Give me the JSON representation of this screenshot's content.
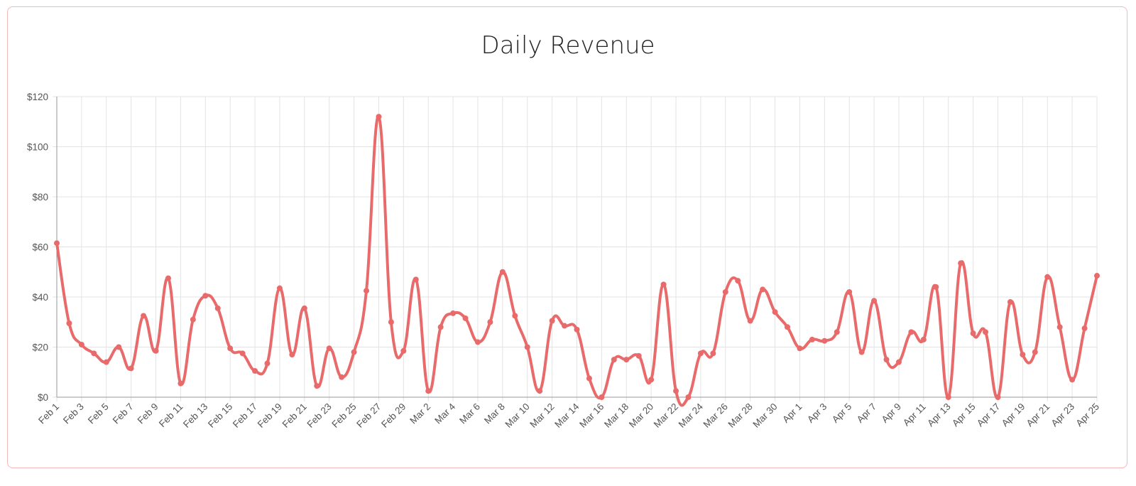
{
  "chart_data": {
    "type": "line",
    "title": "Daily Revenue",
    "xlabel": "",
    "ylabel": "",
    "ylim": [
      0,
      120
    ],
    "yticks": [
      "$0",
      "$20",
      "$40",
      "$60",
      "$80",
      "$100",
      "$120"
    ],
    "ytick_values": [
      0,
      20,
      40,
      60,
      80,
      100,
      120
    ],
    "grid": true,
    "line_color": "#e96a6a",
    "smooth": true,
    "x": [
      "Feb 1",
      "Feb 2",
      "Feb 3",
      "Feb 4",
      "Feb 5",
      "Feb 6",
      "Feb 7",
      "Feb 8",
      "Feb 9",
      "Feb 10",
      "Feb 11",
      "Feb 12",
      "Feb 13",
      "Feb 14",
      "Feb 15",
      "Feb 16",
      "Feb 17",
      "Feb 18",
      "Feb 19",
      "Feb 20",
      "Feb 21",
      "Feb 22",
      "Feb 23",
      "Feb 24",
      "Feb 25",
      "Feb 26",
      "Feb 27",
      "Feb 28",
      "Feb 29",
      "Mar 1",
      "Mar 2",
      "Mar 3",
      "Mar 4",
      "Mar 5",
      "Mar 6",
      "Mar 7",
      "Mar 8",
      "Mar 9",
      "Mar 10",
      "Mar 11",
      "Mar 12",
      "Mar 13",
      "Mar 14",
      "Mar 15",
      "Mar 16",
      "Mar 17",
      "Mar 18",
      "Mar 19",
      "Mar 20",
      "Mar 21",
      "Mar 22",
      "Mar 23",
      "Mar 24",
      "Mar 25",
      "Mar 26",
      "Mar 27",
      "Mar 28",
      "Mar 29",
      "Mar 30",
      "Mar 31",
      "Apr 1",
      "Apr 2",
      "Apr 3",
      "Apr 4",
      "Apr 5",
      "Apr 6",
      "Apr 7",
      "Apr 8",
      "Apr 9",
      "Apr 10",
      "Apr 11",
      "Apr 12",
      "Apr 13",
      "Apr 14",
      "Apr 15",
      "Apr 16",
      "Apr 17",
      "Apr 18",
      "Apr 19",
      "Apr 20",
      "Apr 21",
      "Apr 22",
      "Apr 23",
      "Apr 24",
      "Apr 25"
    ],
    "values": [
      61.5,
      29.5,
      21,
      17.5,
      14,
      20,
      11.5,
      32.5,
      18.5,
      47.5,
      5.5,
      31,
      40.5,
      35.5,
      19.5,
      17.5,
      10.5,
      13.5,
      43.5,
      17,
      35.5,
      4.5,
      19.5,
      8,
      18,
      42.5,
      112,
      30,
      18.5,
      47,
      2.5,
      28,
      33.5,
      31.5,
      22,
      30,
      50,
      32.5,
      20,
      2.5,
      30.5,
      28.5,
      27,
      7.5,
      0,
      15,
      15,
      16.5,
      7,
      45,
      2.5,
      0,
      17.5,
      17.5,
      42,
      46.5,
      30.5,
      43,
      34,
      28,
      19.5,
      23,
      22.5,
      26,
      42,
      18,
      38.5,
      15,
      14,
      26,
      23,
      44,
      0,
      53.5,
      25.5,
      26,
      0,
      38,
      17,
      18,
      48,
      28,
      7,
      27.5,
      48.5
    ],
    "xtick_labels": [
      "Feb 1",
      "Feb 3",
      "Feb 5",
      "Feb 7",
      "Feb 9",
      "Feb 11",
      "Feb 13",
      "Feb 15",
      "Feb 17",
      "Feb 19",
      "Feb 21",
      "Feb 23",
      "Feb 25",
      "Feb 27",
      "Feb 29",
      "Mar 2",
      "Mar 4",
      "Mar 6",
      "Mar 8",
      "Mar 10",
      "Mar 12",
      "Mar 14",
      "Mar 16",
      "Mar 18",
      "Mar 20",
      "Mar 22",
      "Mar 24",
      "Mar 26",
      "Mar 28",
      "Mar 30",
      "Apr 1",
      "Apr 3",
      "Apr 5",
      "Apr 7",
      "Apr 9",
      "Apr 11",
      "Apr 13",
      "Apr 15",
      "Apr 17",
      "Apr 19",
      "Apr 21",
      "Apr 23",
      "Apr 25"
    ]
  }
}
